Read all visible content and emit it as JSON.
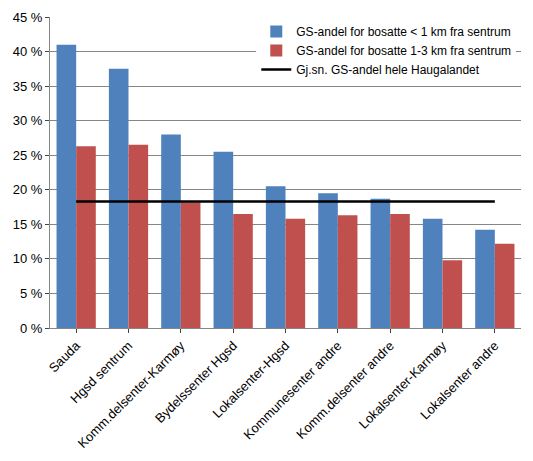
{
  "chart_data": {
    "type": "bar",
    "categories": [
      "Sauda",
      "Hgsd sentrum",
      "Komm.delsenter-Karmøy",
      "Bydelssenter Hgsd",
      "Lokalsenter-Hgsd",
      "Kommunesenter andre",
      "Komm.delsenter andre",
      "Lokalsenter-Karmøy",
      "Lokalsenter andre"
    ],
    "series": [
      {
        "name": "GS-andel for bosatte < 1 km fra sentrum",
        "type": "bar",
        "color": "#4f81bd",
        "values": [
          41,
          37.5,
          28,
          25.5,
          20.5,
          19.5,
          18.7,
          15.8,
          14.2
        ]
      },
      {
        "name": "GS-andel for bosatte 1-3 km fra sentrum",
        "type": "bar",
        "color": "#c0504d",
        "values": [
          26.3,
          26.5,
          18.2,
          16.5,
          15.8,
          16.3,
          16.5,
          9.8,
          12.2
        ]
      },
      {
        "name": "Gj.sn. GS-andel hele Haugalandet",
        "type": "line",
        "color": "#000000",
        "values": [
          18.3,
          18.3,
          18.3,
          18.3,
          18.3,
          18.3,
          18.3,
          18.3,
          18.3
        ]
      }
    ],
    "ylim": [
      0,
      45
    ],
    "yticks": [
      {
        "value": 0,
        "label": "0 %"
      },
      {
        "value": 5,
        "label": "5 %"
      },
      {
        "value": 10,
        "label": "10 %"
      },
      {
        "value": 15,
        "label": "15 %"
      },
      {
        "value": 20,
        "label": "20 %"
      },
      {
        "value": 25,
        "label": "25 %"
      },
      {
        "value": 30,
        "label": "30 %"
      },
      {
        "value": 35,
        "label": "35 %"
      },
      {
        "value": 40,
        "label": "40 %"
      },
      {
        "value": 45,
        "label": "45 %"
      }
    ],
    "grid": true,
    "legend": "upper right"
  }
}
